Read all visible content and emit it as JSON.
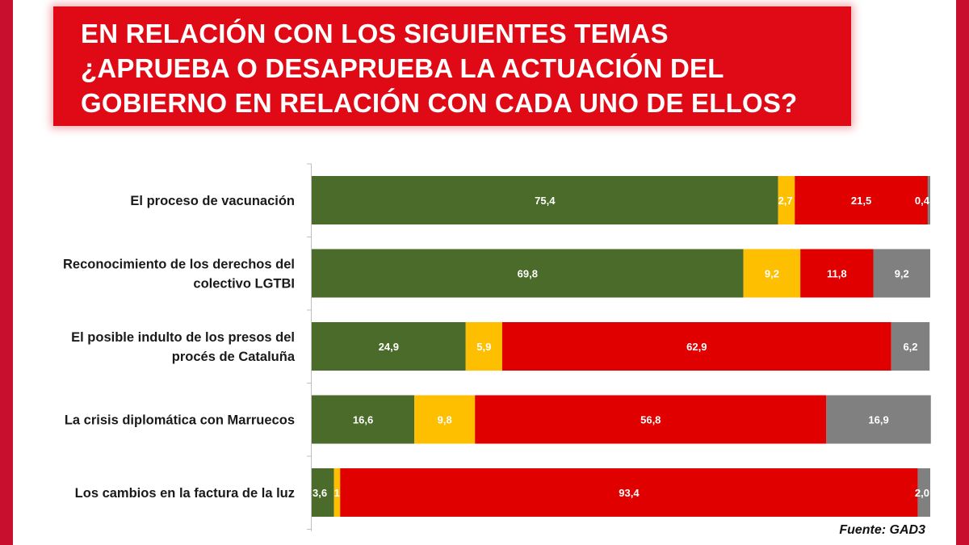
{
  "title_lines": [
    "EN RELACIÓN CON LOS SIGUIENTES TEMAS",
    "¿APRUEBA O DESAPRUEBA LA ACTUACIÓN DEL",
    "GOBIERNO EN RELACIÓN CON CADA UNO DE ELLOS?"
  ],
  "source": "Fuente: GAD3",
  "colors": {
    "frame": "#c8102e",
    "title_bg": "#df0a15",
    "approve": "#4a6b2a",
    "neutral": "#fdbf00",
    "disapprove": "#e00000",
    "no_answer": "#808080"
  },
  "chart_data": {
    "type": "bar",
    "orientation": "horizontal",
    "stacked": true,
    "categories": [
      [
        "El proceso de vacunación"
      ],
      [
        "Reconocimiento de los derechos del",
        "colectivo LGTBI"
      ],
      [
        "El posible indulto de los presos del",
        "procés de Cataluña"
      ],
      [
        "La crisis diplomática con Marruecos"
      ],
      [
        "Los cambios en la factura de la luz"
      ]
    ],
    "series_colors": [
      "#4a6b2a",
      "#fdbf00",
      "#e00000",
      "#808080"
    ],
    "values": [
      [
        75.4,
        2.7,
        21.5,
        0.4
      ],
      [
        69.8,
        9.2,
        11.8,
        9.2
      ],
      [
        24.9,
        5.9,
        62.9,
        6.2
      ],
      [
        16.6,
        9.8,
        56.8,
        16.9
      ],
      [
        3.6,
        1.0,
        93.4,
        2.0
      ]
    ],
    "labels": [
      [
        "75,4",
        "2,7",
        "21,5",
        "0,4"
      ],
      [
        "69,8",
        "9,2",
        "11,8",
        "9,2"
      ],
      [
        "24,9",
        "5,9",
        "62,9",
        "6,2"
      ],
      [
        "16,6",
        "9,8",
        "56,8",
        "16,9"
      ],
      [
        "3,6",
        "1,0",
        "93,4",
        "2,0"
      ]
    ],
    "xlim": [
      0,
      100
    ]
  }
}
